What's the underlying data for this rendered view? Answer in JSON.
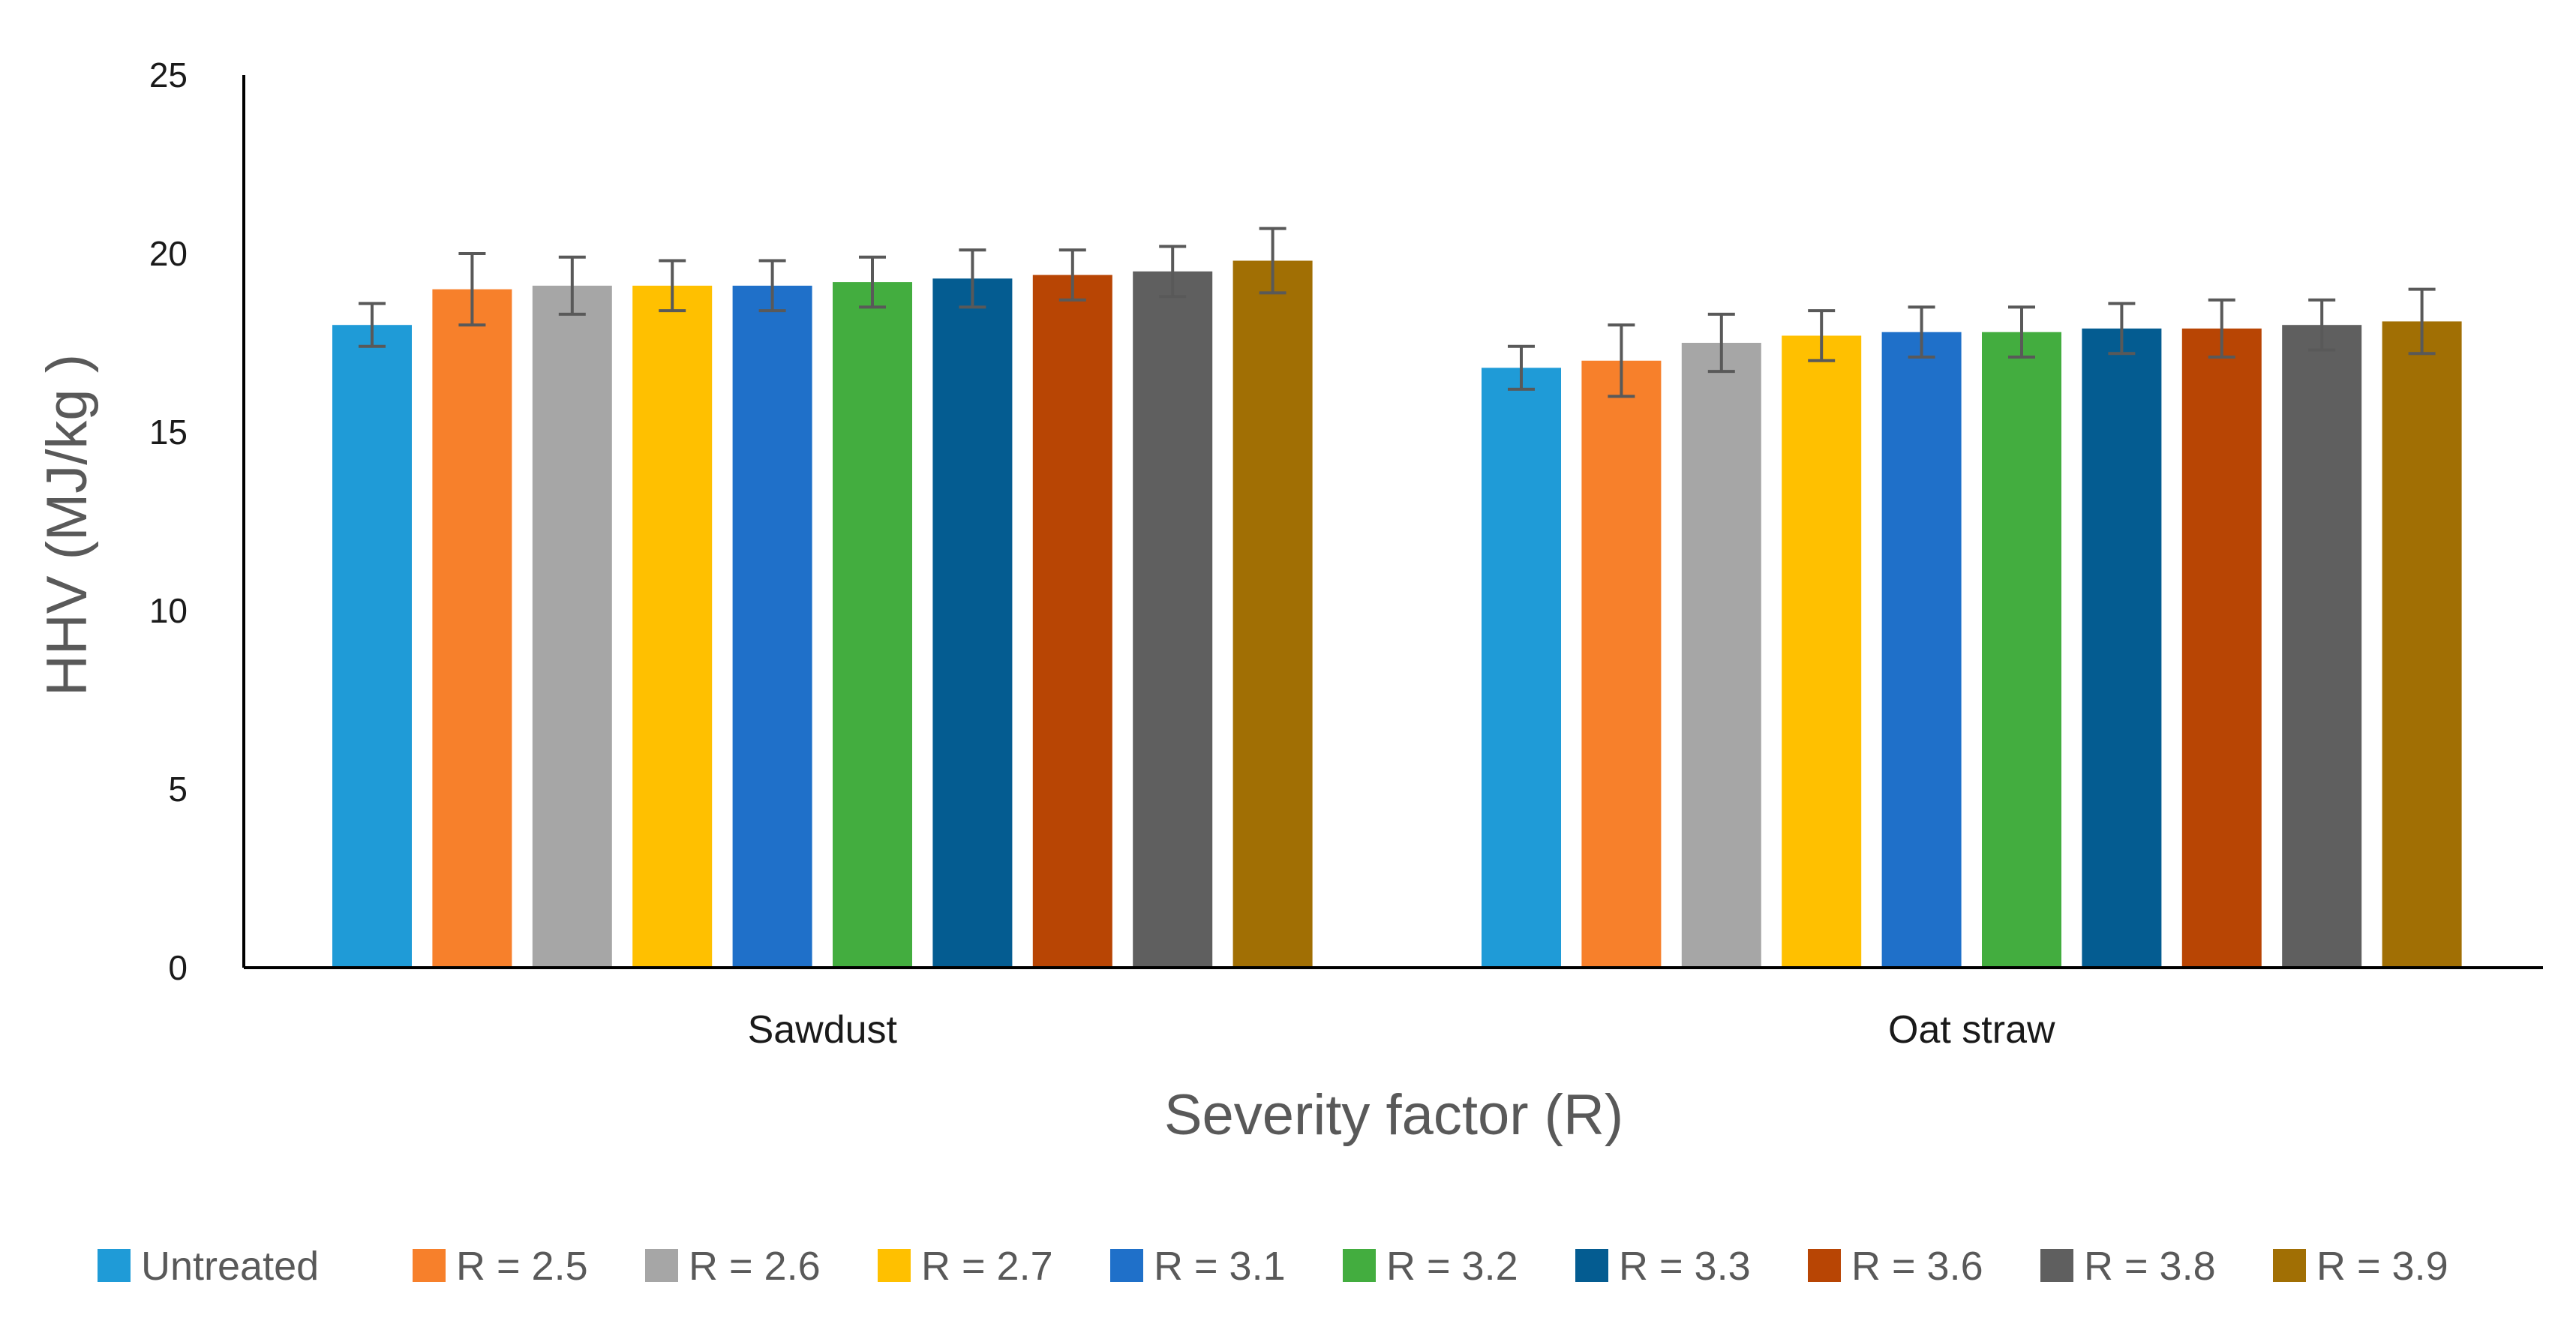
{
  "chart_data": {
    "type": "bar",
    "title": "",
    "xlabel": "Severity factor (R)",
    "ylabel": "HHV (MJ/kg )",
    "ylim": [
      0,
      25
    ],
    "yticks": [
      "0",
      "5",
      "10",
      "15",
      "20",
      "25"
    ],
    "categories": [
      "Sawdust",
      "Oat straw"
    ],
    "legend_position": "bottom",
    "grid": false,
    "series": [
      {
        "name": "Untreated",
        "color": "#1f9bd7",
        "values": [
          18.0,
          16.8
        ],
        "errors": [
          0.6,
          0.6
        ]
      },
      {
        "name": "R = 2.5",
        "color": "#f7802b",
        "values": [
          19.0,
          17.0
        ],
        "errors": [
          1.0,
          1.0
        ]
      },
      {
        "name": "R = 2.6",
        "color": "#a6a6a6",
        "values": [
          19.1,
          17.5
        ],
        "errors": [
          0.8,
          0.8
        ]
      },
      {
        "name": "R = 2.7",
        "color": "#ffc000",
        "values": [
          19.1,
          17.7
        ],
        "errors": [
          0.7,
          0.7
        ]
      },
      {
        "name": "R = 3.1",
        "color": "#1f70c9",
        "values": [
          19.1,
          17.8
        ],
        "errors": [
          0.7,
          0.7
        ]
      },
      {
        "name": "R = 3.2",
        "color": "#43ad3f",
        "values": [
          19.2,
          17.8
        ],
        "errors": [
          0.7,
          0.7
        ]
      },
      {
        "name": "R = 3.3",
        "color": "#045c91",
        "values": [
          19.3,
          17.9
        ],
        "errors": [
          0.8,
          0.7
        ]
      },
      {
        "name": "R = 3.6",
        "color": "#b84504",
        "values": [
          19.4,
          17.9
        ],
        "errors": [
          0.7,
          0.8
        ]
      },
      {
        "name": "R = 3.8",
        "color": "#5f5f5f",
        "values": [
          19.5,
          18.0
        ],
        "errors": [
          0.7,
          0.7
        ]
      },
      {
        "name": "R = 3.9",
        "color": "#a16f04",
        "values": [
          19.8,
          18.1
        ],
        "errors": [
          0.9,
          0.9
        ]
      }
    ]
  }
}
